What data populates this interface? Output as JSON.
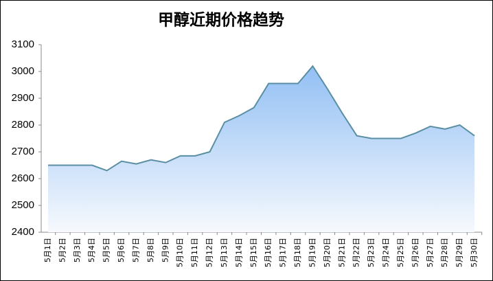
{
  "chart_data": {
    "type": "area",
    "title": "甲醇近期价格趋势",
    "categories": [
      "5月1日",
      "5月2日",
      "5月3日",
      "5月4日",
      "5月5日",
      "5月6日",
      "5月7日",
      "5月8日",
      "5月9日",
      "5月10日",
      "5月11日",
      "5月12日",
      "5月13日",
      "5月14日",
      "5月15日",
      "5月16日",
      "5月17日",
      "5月18日",
      "5月19日",
      "5月20日",
      "5月21日",
      "5月22日",
      "5月23日",
      "5月24日",
      "5月25日",
      "5月26日",
      "5月27日",
      "5月28日",
      "5月29日",
      "5月30日"
    ],
    "values": [
      2650,
      2650,
      2650,
      2650,
      2630,
      2665,
      2655,
      2670,
      2660,
      2685,
      2685,
      2700,
      2810,
      2835,
      2865,
      2955,
      2955,
      2955,
      3020,
      2935,
      2845,
      2760,
      2750,
      2750,
      2750,
      2770,
      2795,
      2785,
      2800,
      2760
    ],
    "color": "#5a8fa3",
    "fill_top": "#92bff4",
    "fill_bottom": "#f6f9fd",
    "ylim": [
      2400,
      3100
    ],
    "yticks": [
      2400,
      2500,
      2600,
      2700,
      2800,
      2900,
      3000,
      3100
    ]
  }
}
